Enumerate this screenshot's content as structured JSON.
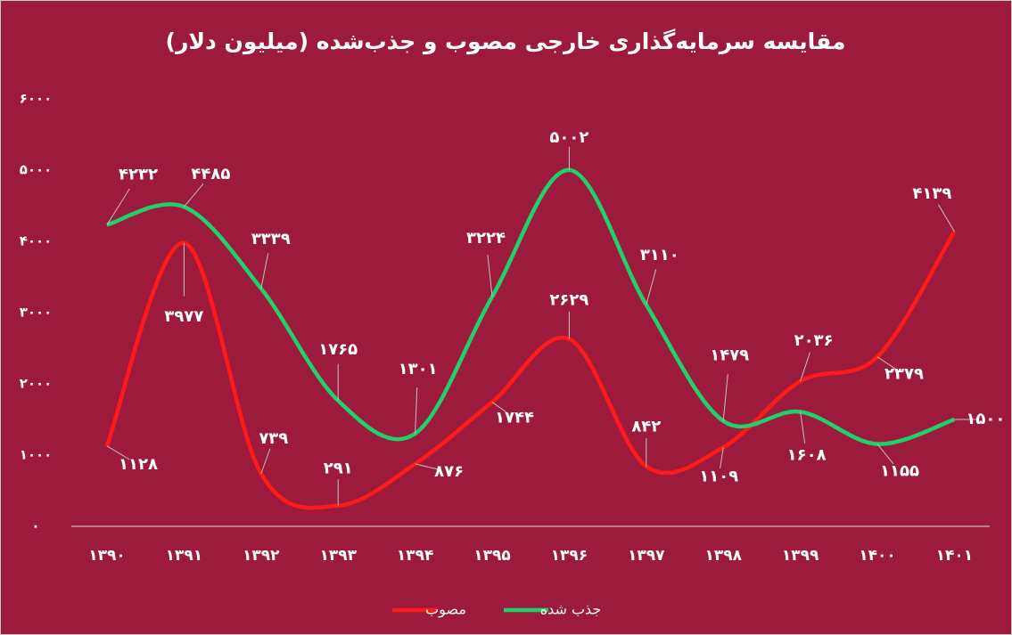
{
  "chart_data": {
    "type": "line",
    "title": "مقایسه سرمایه‌گذاری خارجی مصوب و جذب‌شده (میلیون دلار)",
    "categories": [
      "۱۳۹۰",
      "۱۳۹۱",
      "۱۳۹۲",
      "۱۳۹۳",
      "۱۳۹۴",
      "۱۳۹۵",
      "۱۳۹۶",
      "۱۳۹۷",
      "۱۳۹۸",
      "۱۳۹۹",
      "۱۴۰۰",
      "۱۴۰۱"
    ],
    "series": [
      {
        "name": "مصوب",
        "color": "#ff1a1a",
        "values": [
          1128,
          3977,
          739,
          291,
          876,
          1744,
          2629,
          842,
          1109,
          2036,
          2379,
          4139
        ],
        "value_labels": [
          "۱۱۲۸",
          "۳۹۷۷",
          "۷۳۹",
          "۲۹۱",
          "۸۷۶",
          "۱۷۴۴",
          "۲۶۲۹",
          "۸۴۲",
          "۱۱۰۹",
          "۲۰۳۶",
          "۲۳۷۹",
          "۴۱۳۹"
        ]
      },
      {
        "name": "جذب شده",
        "color": "#1fd16a",
        "values": [
          4232,
          4485,
          3339,
          1765,
          1301,
          3224,
          5002,
          3110,
          1479,
          1608,
          1155,
          1500
        ],
        "value_labels": [
          "۴۲۳۲",
          "۴۴۸۵",
          "۳۳۳۹",
          "۱۷۶۵",
          "۱۳۰۱",
          "۳۲۲۴",
          "۵۰۰۲",
          "۳۱۱۰",
          "۱۴۷۹",
          "۱۶۰۸",
          "۱۱۵۵",
          "۱۵۰۰"
        ]
      }
    ],
    "ylim": [
      0,
      6000
    ],
    "yticks": [
      {
        "value": 0,
        "label": "۰"
      },
      {
        "value": 1000,
        "label": "۱۰۰۰"
      },
      {
        "value": 2000,
        "label": "۲۰۰۰"
      },
      {
        "value": 3000,
        "label": "۳۰۰۰"
      },
      {
        "value": 4000,
        "label": "۴۰۰۰"
      },
      {
        "value": 5000,
        "label": "۵۰۰۰"
      },
      {
        "value": 6000,
        "label": "۶۰۰۰"
      }
    ],
    "legend": "bottom"
  }
}
